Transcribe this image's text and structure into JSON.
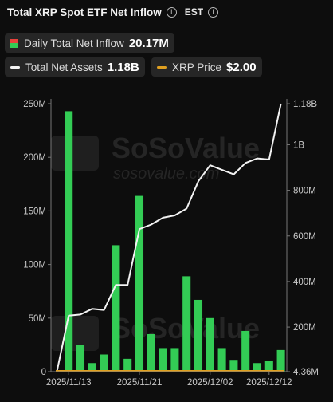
{
  "header": {
    "title": "Total XRP Spot ETF Net Inflow",
    "timezone": "EST",
    "info_icon": "info-icon"
  },
  "legend": {
    "daily": {
      "label": "Daily Total Net Inflow",
      "value": "20.17M",
      "colors": [
        "#e8413b",
        "#33cc55"
      ]
    },
    "assets": {
      "label": "Total Net Assets",
      "value": "1.18B",
      "color": "#f2f2f2"
    },
    "price": {
      "label": "XRP Price",
      "value": "$2.00",
      "color": "#e0a020"
    }
  },
  "watermark": {
    "brand": "SoSoValue",
    "site": "sosovalue.com"
  },
  "chart_data": {
    "type": "bar",
    "title": "Total XRP Spot ETF Net Inflow",
    "x_tick_labels": [
      "2025/11/13",
      "2025/11/21",
      "2025/12/02",
      "2025/12/12"
    ],
    "left_axis": {
      "ticks": [
        "0",
        "50M",
        "100M",
        "150M",
        "200M",
        "250M"
      ],
      "ylim": [
        0,
        250000000
      ]
    },
    "right_axis": {
      "ticks": [
        "4.36M",
        "200M",
        "400M",
        "600M",
        "800M",
        "1B",
        "1.18B"
      ],
      "ylim": [
        4360000,
        1180000000
      ]
    },
    "series": [
      {
        "name": "Daily Total Net Inflow",
        "kind": "bar",
        "axis": "left",
        "color": "#33cc55",
        "values": [
          0,
          243000000,
          25000000,
          8000000,
          16000000,
          118000000,
          12000000,
          164000000,
          35000000,
          22000000,
          22000000,
          89000000,
          67000000,
          50000000,
          22000000,
          11000000,
          38000000,
          8000000,
          10000000,
          20170000
        ]
      },
      {
        "name": "Total Net Assets",
        "kind": "line",
        "axis": "right",
        "color": "#f2f2f2",
        "values": [
          4360000,
          250000000,
          255000000,
          280000000,
          275000000,
          385000000,
          385000000,
          630000000,
          650000000,
          680000000,
          690000000,
          720000000,
          840000000,
          910000000,
          890000000,
          870000000,
          920000000,
          940000000,
          935000000,
          1180000000
        ]
      },
      {
        "name": "XRP Price",
        "kind": "line",
        "axis": "right",
        "color": "#e0a020",
        "values": [
          2.0,
          2.0,
          2.0,
          2.0,
          2.0,
          2.0,
          2.0,
          2.0,
          2.0,
          2.0,
          2.0,
          2.0,
          2.0,
          2.0,
          2.0,
          2.0,
          2.0,
          2.0,
          2.0,
          2.0
        ]
      }
    ],
    "grid": false,
    "legend_position": "top-left"
  }
}
